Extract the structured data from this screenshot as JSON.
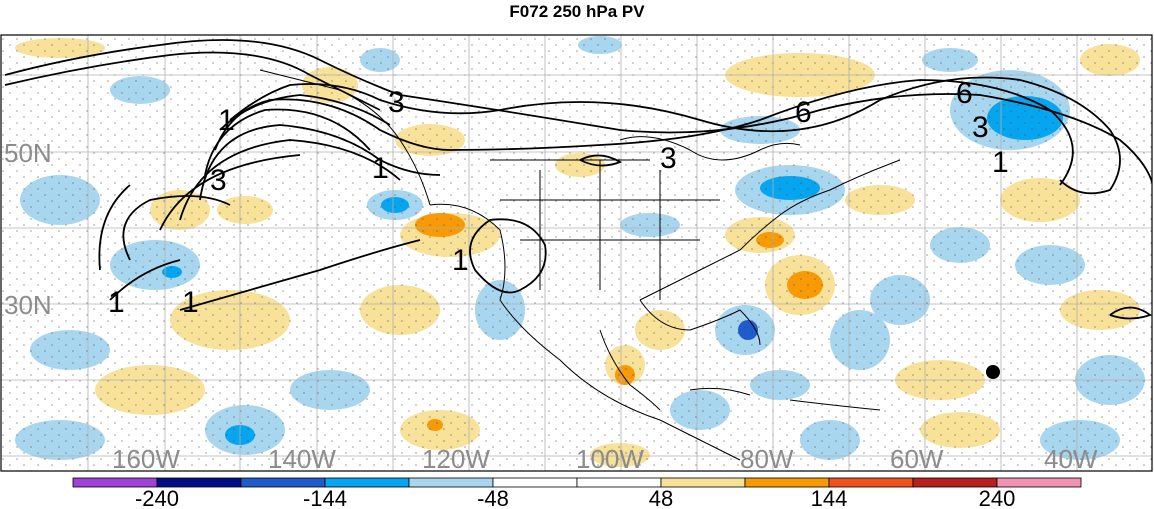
{
  "title": "F072 250 hPa PV",
  "lat_labels": [
    "50N",
    "30N"
  ],
  "lon_labels": [
    "160W",
    "140W",
    "120W",
    "100W",
    "80W",
    "60W",
    "40W"
  ],
  "contour_labels": [
    "1",
    "3",
    "1",
    "3",
    "1",
    "1",
    "1",
    "3",
    "6",
    "6",
    "3",
    "1"
  ],
  "colorbar": {
    "colors": [
      "#a041d8",
      "#040c86",
      "#1f5bcb",
      "#05a5ef",
      "#a9d6ef",
      "#ffffff",
      "#ffffff",
      "#f8e199",
      "#f89a06",
      "#f0521c",
      "#b8201e",
      "#f292b2"
    ],
    "tick_labels": [
      "-240",
      "-144",
      "-48",
      "48",
      "144",
      "240"
    ]
  }
}
